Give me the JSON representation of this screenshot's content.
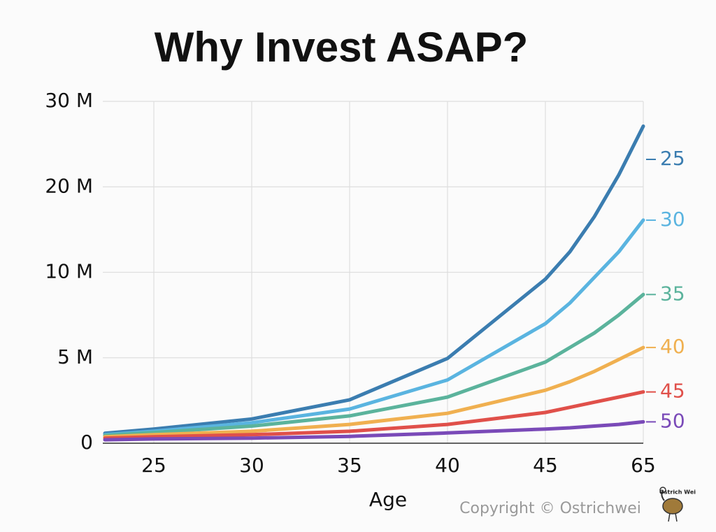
{
  "chart_data": {
    "type": "line",
    "title": "Why Invest ASAP?",
    "x_label": "Age",
    "copyright": "Copyright © Ostrichwei",
    "logo_text": "Ostrich Wei",
    "x": [
      22.5,
      25,
      30,
      35,
      40,
      45,
      50,
      55,
      60,
      65
    ],
    "xlim": [
      22.5,
      65
    ],
    "xticks": [
      25,
      30,
      35,
      40,
      45,
      65
    ],
    "ylim": [
      0,
      30
    ],
    "yticks": [
      0,
      {
        "value": 5,
        "label": "5 M"
      },
      {
        "value": 10,
        "label": "10 M"
      },
      {
        "value": 20,
        "label": "20 M"
      },
      {
        "value": 30,
        "label": "30 M"
      }
    ],
    "grid": true,
    "series": [
      {
        "name": "25",
        "color": "#3b7db0",
        "values": [
          0.58,
          0.83,
          1.42,
          2.54,
          4.96,
          9.6,
          12.4,
          16.5,
          21.4,
          27.1
        ]
      },
      {
        "name": "30",
        "color": "#5ab4e0",
        "values": [
          0.5,
          0.7,
          1.2,
          2.0,
          3.7,
          7.0,
          8.2,
          9.7,
          12.4,
          16.1
        ]
      },
      {
        "name": "35",
        "color": "#5bb39c",
        "values": [
          0.46,
          0.62,
          1.0,
          1.6,
          2.7,
          4.75,
          5.6,
          6.45,
          7.5,
          8.7
        ]
      },
      {
        "name": "40",
        "color": "#f0b050",
        "values": [
          0.38,
          0.5,
          0.7,
          1.1,
          1.75,
          3.1,
          3.6,
          4.2,
          4.9,
          5.6
        ]
      },
      {
        "name": "45",
        "color": "#e0504a",
        "values": [
          0.3,
          0.38,
          0.5,
          0.7,
          1.1,
          1.8,
          2.1,
          2.4,
          2.7,
          3.0
        ]
      },
      {
        "name": "50",
        "color": "#7a4ab8",
        "values": [
          0.2,
          0.25,
          0.3,
          0.4,
          0.6,
          0.83,
          0.9,
          1.0,
          1.1,
          1.25
        ]
      }
    ]
  }
}
